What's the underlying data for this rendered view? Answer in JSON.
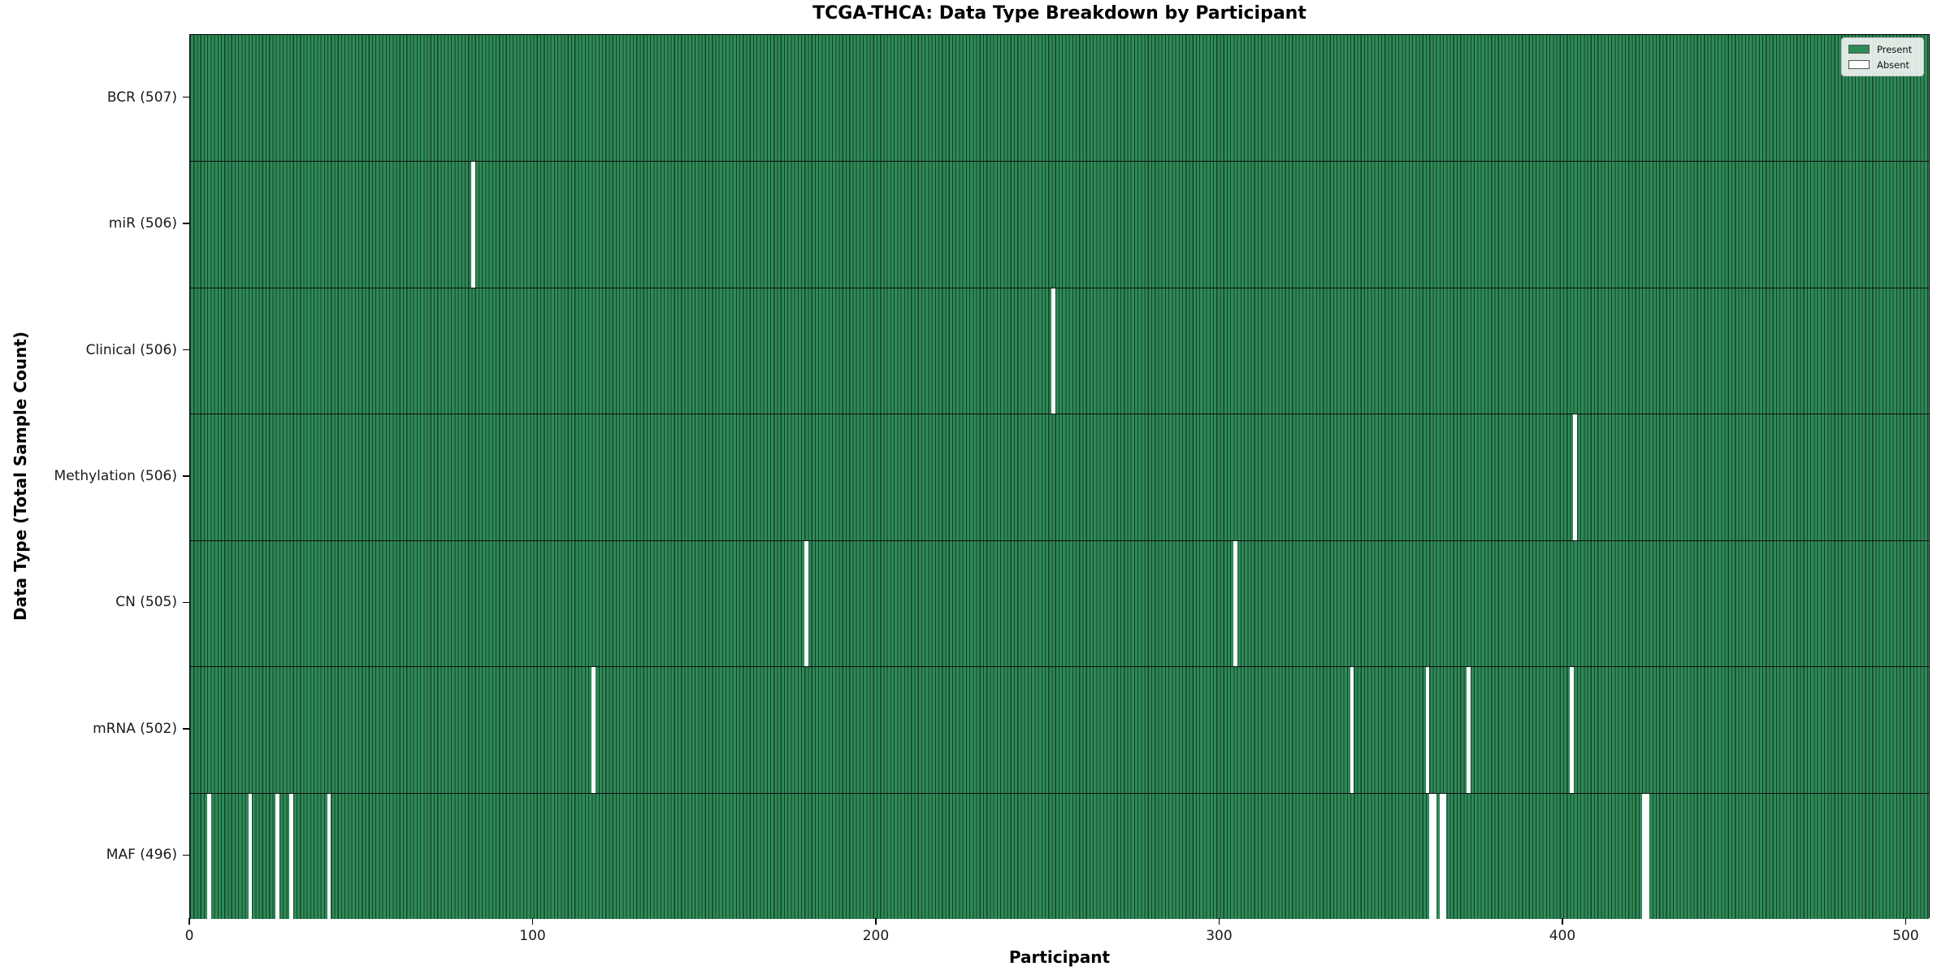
{
  "chart_data": {
    "type": "heatmap",
    "title": "TCGA-THCA: Data Type Breakdown by Participant",
    "xlabel": "Participant",
    "ylabel": "Data Type (Total Sample Count)",
    "x_ticks": [
      0,
      100,
      200,
      300,
      400,
      500
    ],
    "xlim": [
      0,
      507
    ],
    "n_participants": 507,
    "grid": false,
    "legend_position": "upper right",
    "colors": {
      "present": "#2e8b57",
      "present_edge": "#16402a",
      "absent": "#ffffff"
    },
    "legend": [
      {
        "label": "Present",
        "color": "#2e8b57"
      },
      {
        "label": "Absent",
        "color": "#ffffff"
      }
    ],
    "rows": [
      {
        "data_type": "BCR",
        "label": "BCR (507)",
        "total": 507,
        "absent_participants": []
      },
      {
        "data_type": "miR",
        "label": "miR (506)",
        "total": 506,
        "absent_participants": [
          82
        ]
      },
      {
        "data_type": "Clinical",
        "label": "Clinical (506)",
        "total": 506,
        "absent_participants": [
          251
        ]
      },
      {
        "data_type": "Methylation",
        "label": "Methylation (506)",
        "total": 506,
        "absent_participants": [
          403
        ]
      },
      {
        "data_type": "CN",
        "label": "CN (505)",
        "total": 505,
        "absent_participants": [
          179,
          304
        ]
      },
      {
        "data_type": "mRNA",
        "label": "mRNA (502)",
        "total": 502,
        "absent_participants": [
          117,
          338,
          360,
          372,
          402
        ]
      },
      {
        "data_type": "MAF",
        "label": "MAF (496)",
        "total": 496,
        "absent_participants": [
          5,
          17,
          25,
          29,
          40,
          361,
          362,
          364,
          365,
          423,
          424
        ]
      }
    ]
  }
}
